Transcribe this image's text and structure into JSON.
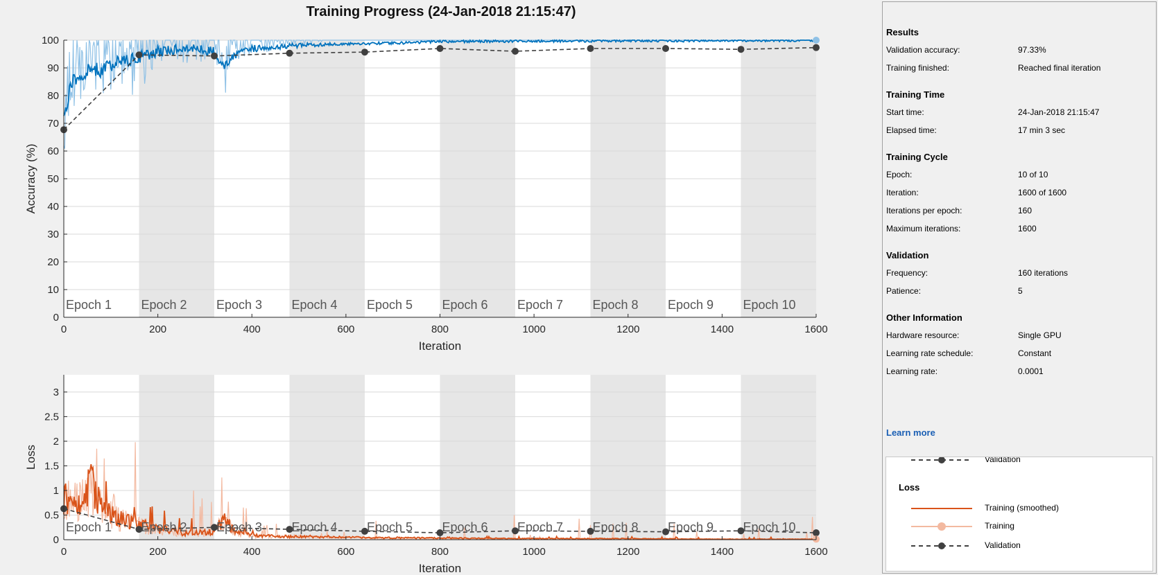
{
  "window": {
    "title": "Training Progress (24-Jan-2018 21:15:47)"
  },
  "colors": {
    "accuracy_smoothed": "#0072bd",
    "accuracy_raw": "#8fc1e6",
    "loss_smoothed": "#d95319",
    "loss_raw": "#f3b9a0",
    "validation": "#404040",
    "epoch_band": "#e6e6e6",
    "link": "#1a5fb4"
  },
  "chart_data": [
    {
      "type": "line",
      "name_key": "accuracy",
      "xlabel": "Iteration",
      "ylabel": "Accuracy (%)",
      "xlim": [
        0,
        1600
      ],
      "ylim": [
        0,
        100
      ],
      "xticks": [
        0,
        200,
        400,
        600,
        800,
        1000,
        1200,
        1400,
        1600
      ],
      "yticks": [
        0,
        10,
        20,
        30,
        40,
        50,
        60,
        70,
        80,
        90,
        100
      ],
      "grid": true,
      "epochs": [
        "Epoch 1",
        "Epoch 2",
        "Epoch 3",
        "Epoch 4",
        "Epoch 5",
        "Epoch 6",
        "Epoch 7",
        "Epoch 8",
        "Epoch 9",
        "Epoch 10"
      ],
      "iterations_per_epoch": 160,
      "validation": {
        "x": [
          0,
          160,
          320,
          480,
          640,
          800,
          960,
          1120,
          1280,
          1440,
          1600
        ],
        "y": [
          67.7,
          94.7,
          94.3,
          95.3,
          95.7,
          97.0,
          96.0,
          97.0,
          97.0,
          96.7,
          97.33
        ]
      },
      "smoothed_anchor": {
        "x": [
          0,
          10,
          20,
          40,
          60,
          80,
          100,
          120,
          140,
          160,
          200,
          260,
          320,
          340,
          360,
          400,
          480,
          560,
          640,
          720,
          800,
          900,
          1000,
          1100,
          1200,
          1300,
          1400,
          1500,
          1600
        ],
        "y": [
          70,
          80,
          85,
          88,
          90,
          89,
          91,
          92,
          93,
          94,
          96,
          97,
          96,
          90,
          94,
          97,
          98,
          98.5,
          98.8,
          99,
          99.5,
          99.6,
          99.7,
          99.7,
          99.8,
          99.8,
          99.9,
          99.9,
          100
        ]
      }
    },
    {
      "type": "line",
      "name_key": "loss",
      "xlabel": "Iteration",
      "ylabel": "Loss",
      "xlim": [
        0,
        1600
      ],
      "ylim": [
        0,
        3.35
      ],
      "xticks": [
        0,
        200,
        400,
        600,
        800,
        1000,
        1200,
        1400,
        1600
      ],
      "yticks": [
        0,
        0.5,
        1,
        1.5,
        2,
        2.5,
        3
      ],
      "grid": true,
      "epochs": [
        "Epoch 1",
        "Epoch 2",
        "Epoch 3",
        "Epoch 4",
        "Epoch 5",
        "Epoch 6",
        "Epoch 7",
        "Epoch 8",
        "Epoch 9",
        "Epoch 10"
      ],
      "iterations_per_epoch": 160,
      "validation": {
        "x": [
          0,
          160,
          320,
          480,
          640,
          800,
          960,
          1120,
          1280,
          1440,
          1600
        ],
        "y": [
          0.63,
          0.21,
          0.25,
          0.21,
          0.17,
          0.14,
          0.18,
          0.17,
          0.16,
          0.18,
          0.14
        ]
      },
      "smoothed_anchor": {
        "x": [
          0,
          20,
          40,
          60,
          80,
          100,
          120,
          160,
          200,
          260,
          320,
          340,
          360,
          400,
          480,
          560,
          640,
          800,
          1000,
          1200,
          1400,
          1600
        ],
        "y": [
          0.8,
          0.7,
          0.9,
          1.2,
          0.6,
          0.5,
          0.4,
          0.3,
          0.2,
          0.12,
          0.15,
          0.4,
          0.2,
          0.08,
          0.06,
          0.05,
          0.04,
          0.03,
          0.02,
          0.02,
          0.01,
          0.01
        ]
      }
    }
  ],
  "info": {
    "sections": [
      {
        "title": "Results",
        "rows": [
          {
            "label": "Validation accuracy:",
            "value": "97.33%"
          },
          {
            "label": "Training finished:",
            "value": "Reached final iteration"
          }
        ]
      },
      {
        "title": "Training Time",
        "rows": [
          {
            "label": "Start time:",
            "value": "24-Jan-2018 21:15:47"
          },
          {
            "label": "Elapsed time:",
            "value": "17 min 3 sec"
          }
        ]
      },
      {
        "title": "Training Cycle",
        "rows": [
          {
            "label": "Epoch:",
            "value": "10 of 10"
          },
          {
            "label": "Iteration:",
            "value": "1600 of 1600"
          },
          {
            "label": "Iterations per epoch:",
            "value": "160"
          },
          {
            "label": "Maximum iterations:",
            "value": "1600"
          }
        ]
      },
      {
        "title": "Validation",
        "rows": [
          {
            "label": "Frequency:",
            "value": "160 iterations"
          },
          {
            "label": "Patience:",
            "value": "5"
          }
        ]
      },
      {
        "title": "Other Information",
        "rows": [
          {
            "label": "Hardware resource:",
            "value": "Single GPU"
          },
          {
            "label": "Learning rate schedule:",
            "value": "Constant"
          },
          {
            "label": "Learning rate:",
            "value": "0.0001"
          }
        ]
      }
    ],
    "learn_more": "Learn more"
  },
  "legend": {
    "accuracy_validation": "Validation",
    "loss_title": "Loss",
    "loss_training_smoothed": "Training (smoothed)",
    "loss_training": "Training",
    "loss_validation": "Validation"
  }
}
